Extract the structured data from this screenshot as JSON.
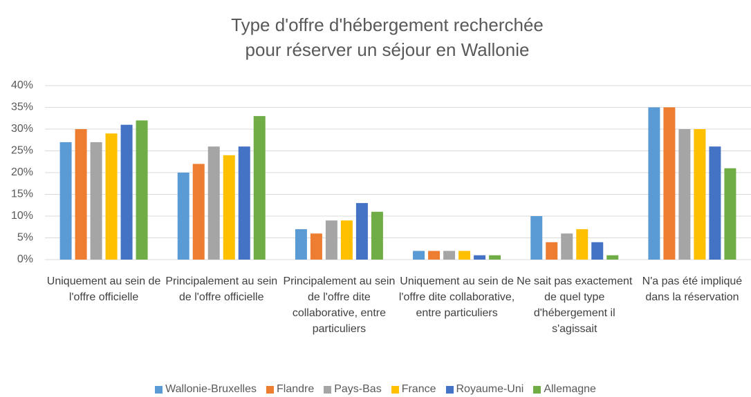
{
  "chart_data": {
    "type": "bar",
    "title": [
      "Type d'offre d'hébergement recherchée",
      "pour réserver un séjour en Wallonie"
    ],
    "categories": [
      "Uniquement au sein de l'offre officielle",
      "Principalement au sein de l'offre officielle",
      "Principalement au sein de l'offre dite collaborative, entre particuliers",
      "Uniquement au sein de l'offre dite collaborative, entre particuliers",
      "Ne sait pas exactement de quel type d'hébergement il s'agissait",
      "N'a pas été impliqué dans la réservation"
    ],
    "series": [
      {
        "name": "Wallonie-Bruxelles",
        "color": "#5b9bd5",
        "values": [
          27,
          20,
          7,
          2,
          10,
          35
        ]
      },
      {
        "name": "Flandre",
        "color": "#ed7d31",
        "values": [
          30,
          22,
          6,
          2,
          4,
          35
        ]
      },
      {
        "name": "Pays-Bas",
        "color": "#a5a5a5",
        "values": [
          27,
          26,
          9,
          2,
          6,
          30
        ]
      },
      {
        "name": "France",
        "color": "#ffc000",
        "values": [
          29,
          24,
          9,
          2,
          7,
          30
        ]
      },
      {
        "name": "Royaume-Uni",
        "color": "#4472c4",
        "values": [
          31,
          26,
          13,
          1,
          4,
          26
        ]
      },
      {
        "name": "Allemagne",
        "color": "#70ad47",
        "values": [
          32,
          33,
          11,
          1,
          1,
          21
        ]
      }
    ],
    "ylim": [
      0,
      40
    ],
    "yticks": [
      {
        "value": 0,
        "label": "0%"
      },
      {
        "value": 5,
        "label": "5%"
      },
      {
        "value": 10,
        "label": "10%"
      },
      {
        "value": 15,
        "label": "15%"
      },
      {
        "value": 20,
        "label": "20%"
      },
      {
        "value": 25,
        "label": "25%"
      },
      {
        "value": 30,
        "label": "30%"
      },
      {
        "value": 35,
        "label": "35%"
      },
      {
        "value": 40,
        "label": "40%"
      }
    ],
    "grid": true,
    "legend": "bottom"
  }
}
